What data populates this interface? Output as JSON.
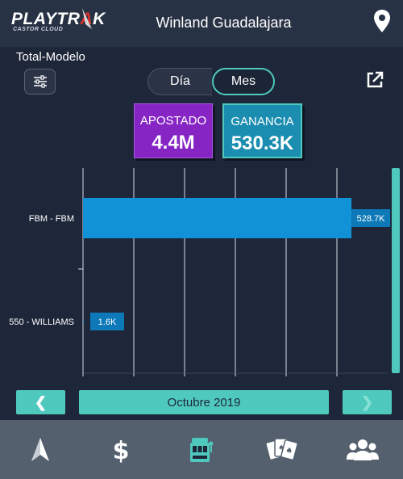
{
  "header": {
    "logo_text_main": "PLAYTR",
    "logo_text_accent": "A",
    "logo_text_end": "K",
    "logo_subtext": "CASTOR CLOUD",
    "title": "Winland Guadalajara",
    "location_icon": "map-pin-icon"
  },
  "toolbar": {
    "section_label": "Total-Modelo",
    "filter_icon": "sliders-icon",
    "period_options": [
      "Día",
      "Mes"
    ],
    "period_selected": "Mes",
    "share_icon": "external-link-icon"
  },
  "kpis": {
    "apostado_label": "APOSTADO",
    "apostado_value": "4.4M",
    "ganancia_label": "GANANCIA",
    "ganancia_value": "530.3K"
  },
  "colors": {
    "background": "#1e2739",
    "header": "#283245",
    "teal": "#4fc9be",
    "bar": "#1191d6",
    "purple": "#8624c4",
    "tabbar": "#54606e"
  },
  "chart_data": {
    "type": "bar",
    "orientation": "horizontal",
    "categories": [
      "FBM - FBM",
      "550 - WILLIAMS"
    ],
    "values": [
      528.7,
      1.6
    ],
    "value_labels": [
      "528.7K",
      "1.6K"
    ],
    "units": "K",
    "xlim": [
      0,
      600
    ],
    "grid": true
  },
  "date_nav": {
    "prev_label": "❮",
    "current_label": "Octubre 2019",
    "next_label": "❯"
  },
  "tabbar": {
    "tabs": [
      {
        "icon": "playtrak-logo-icon"
      },
      {
        "icon": "dollar-icon"
      },
      {
        "icon": "slot-machine-icon",
        "active": true
      },
      {
        "icon": "cards-icon"
      },
      {
        "icon": "users-icon"
      }
    ]
  }
}
